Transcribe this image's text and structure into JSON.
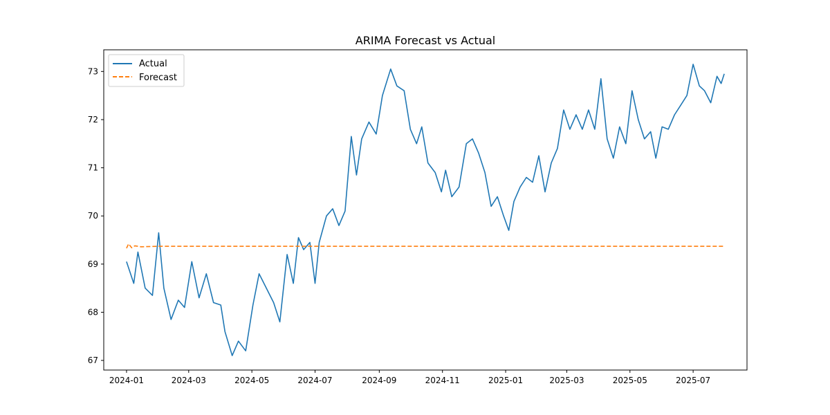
{
  "chart_data": {
    "type": "line",
    "title": "ARIMA Forecast vs Actual",
    "xlabel": "",
    "ylabel": "",
    "x_range": [
      "2023-12-10",
      "2025-08-22"
    ],
    "ylim": [
      66.8,
      73.45
    ],
    "grid": false,
    "legend_position": "top-left",
    "x_ticks": [
      "2024-01",
      "2024-03",
      "2024-05",
      "2024-07",
      "2024-09",
      "2024-11",
      "2025-01",
      "2025-03",
      "2025-05",
      "2025-07"
    ],
    "y_ticks": [
      "67",
      "68",
      "69",
      "70",
      "71",
      "72",
      "73"
    ],
    "series": [
      {
        "name": "Actual",
        "color": "#1f77b4",
        "style": "solid",
        "points": [
          [
            "2024-01-01",
            69.05
          ],
          [
            "2024-01-08",
            68.6
          ],
          [
            "2024-01-12",
            69.25
          ],
          [
            "2024-01-19",
            68.5
          ],
          [
            "2024-01-26",
            68.35
          ],
          [
            "2024-02-01",
            69.65
          ],
          [
            "2024-02-06",
            68.5
          ],
          [
            "2024-02-13",
            67.85
          ],
          [
            "2024-02-20",
            68.25
          ],
          [
            "2024-02-26",
            68.1
          ],
          [
            "2024-03-04",
            69.05
          ],
          [
            "2024-03-11",
            68.3
          ],
          [
            "2024-03-18",
            68.8
          ],
          [
            "2024-03-25",
            68.2
          ],
          [
            "2024-04-01",
            68.15
          ],
          [
            "2024-04-05",
            67.6
          ],
          [
            "2024-04-12",
            67.1
          ],
          [
            "2024-04-18",
            67.4
          ],
          [
            "2024-04-25",
            67.2
          ],
          [
            "2024-05-02",
            68.15
          ],
          [
            "2024-05-08",
            68.8
          ],
          [
            "2024-05-15",
            68.5
          ],
          [
            "2024-05-22",
            68.2
          ],
          [
            "2024-05-28",
            67.8
          ],
          [
            "2024-06-04",
            69.2
          ],
          [
            "2024-06-10",
            68.6
          ],
          [
            "2024-06-15",
            69.55
          ],
          [
            "2024-06-20",
            69.3
          ],
          [
            "2024-06-26",
            69.45
          ],
          [
            "2024-07-01",
            68.6
          ],
          [
            "2024-07-05",
            69.45
          ],
          [
            "2024-07-12",
            70.0
          ],
          [
            "2024-07-18",
            70.15
          ],
          [
            "2024-07-24",
            69.8
          ],
          [
            "2024-07-30",
            70.1
          ],
          [
            "2024-08-05",
            71.65
          ],
          [
            "2024-08-10",
            70.85
          ],
          [
            "2024-08-15",
            71.6
          ],
          [
            "2024-08-22",
            71.95
          ],
          [
            "2024-08-29",
            71.7
          ],
          [
            "2024-09-04",
            72.5
          ],
          [
            "2024-09-12",
            73.05
          ],
          [
            "2024-09-18",
            72.7
          ],
          [
            "2024-09-25",
            72.6
          ],
          [
            "2024-10-01",
            71.8
          ],
          [
            "2024-10-07",
            71.5
          ],
          [
            "2024-10-12",
            71.85
          ],
          [
            "2024-10-18",
            71.1
          ],
          [
            "2024-10-25",
            70.9
          ],
          [
            "2024-10-31",
            70.5
          ],
          [
            "2024-11-04",
            70.95
          ],
          [
            "2024-11-10",
            70.4
          ],
          [
            "2024-11-17",
            70.6
          ],
          [
            "2024-11-24",
            71.5
          ],
          [
            "2024-11-30",
            71.6
          ],
          [
            "2024-12-06",
            71.3
          ],
          [
            "2024-12-12",
            70.9
          ],
          [
            "2024-12-18",
            70.2
          ],
          [
            "2024-12-24",
            70.4
          ],
          [
            "2024-12-30",
            70.0
          ],
          [
            "2025-01-04",
            69.7
          ],
          [
            "2025-01-09",
            70.3
          ],
          [
            "2025-01-15",
            70.6
          ],
          [
            "2025-01-21",
            70.8
          ],
          [
            "2025-01-27",
            70.7
          ],
          [
            "2025-02-02",
            71.25
          ],
          [
            "2025-02-08",
            70.5
          ],
          [
            "2025-02-14",
            71.1
          ],
          [
            "2025-02-20",
            71.4
          ],
          [
            "2025-02-26",
            72.2
          ],
          [
            "2025-03-04",
            71.8
          ],
          [
            "2025-03-10",
            72.1
          ],
          [
            "2025-03-16",
            71.8
          ],
          [
            "2025-03-22",
            72.2
          ],
          [
            "2025-03-28",
            71.8
          ],
          [
            "2025-04-03",
            72.85
          ],
          [
            "2025-04-09",
            71.6
          ],
          [
            "2025-04-15",
            71.2
          ],
          [
            "2025-04-21",
            71.85
          ],
          [
            "2025-04-27",
            71.5
          ],
          [
            "2025-05-03",
            72.6
          ],
          [
            "2025-05-09",
            72.0
          ],
          [
            "2025-05-15",
            71.6
          ],
          [
            "2025-05-21",
            71.75
          ],
          [
            "2025-05-26",
            71.2
          ],
          [
            "2025-06-01",
            71.85
          ],
          [
            "2025-06-07",
            71.8
          ],
          [
            "2025-06-13",
            72.1
          ],
          [
            "2025-06-19",
            72.3
          ],
          [
            "2025-06-25",
            72.5
          ],
          [
            "2025-07-01",
            73.15
          ],
          [
            "2025-07-07",
            72.7
          ],
          [
            "2025-07-12",
            72.6
          ],
          [
            "2025-07-18",
            72.35
          ],
          [
            "2025-07-24",
            72.9
          ],
          [
            "2025-07-28",
            72.75
          ],
          [
            "2025-07-31",
            72.95
          ]
        ]
      },
      {
        "name": "Forecast",
        "color": "#ff7f0e",
        "style": "dashed",
        "points": [
          [
            "2024-01-01",
            69.33
          ],
          [
            "2024-01-03",
            69.42
          ],
          [
            "2024-01-06",
            69.34
          ],
          [
            "2024-01-09",
            69.38
          ],
          [
            "2024-01-15",
            69.36
          ],
          [
            "2024-02-01",
            69.37
          ],
          [
            "2025-07-31",
            69.37
          ]
        ]
      }
    ]
  }
}
